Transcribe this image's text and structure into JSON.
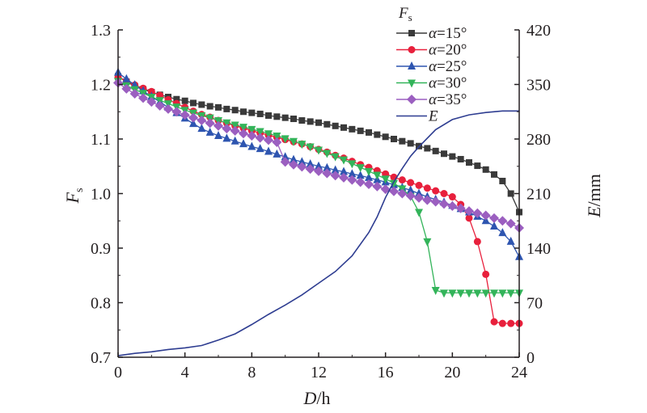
{
  "chart_data": {
    "type": "line",
    "x_axis": {
      "title": "D/h",
      "title_var": "D",
      "title_unit": "/h",
      "range": [
        0,
        24
      ],
      "ticks": [
        0,
        4,
        8,
        12,
        16,
        20,
        24
      ],
      "tick_labels": [
        "0",
        "4",
        "8",
        "12",
        "16",
        "20",
        "24"
      ]
    },
    "y_left": {
      "title": "Fs",
      "title_var": "F",
      "title_sub": "s",
      "range": [
        0.7,
        1.3
      ],
      "ticks": [
        0.7,
        0.8,
        0.9,
        1.0,
        1.1,
        1.2,
        1.3
      ],
      "tick_labels": [
        "0.7",
        "0.8",
        "0.9",
        "1.0",
        "1.1",
        "1.2",
        "1.3"
      ]
    },
    "y_right": {
      "title": "E/mm",
      "title_var": "E",
      "title_unit": "/mm",
      "range": [
        0,
        420
      ],
      "ticks": [
        0,
        70,
        140,
        210,
        280,
        350,
        420
      ],
      "tick_labels": [
        "0",
        "70",
        "140",
        "210",
        "280",
        "350",
        "420"
      ]
    },
    "legend": {
      "title": "Fs",
      "title_var": "F",
      "title_sub": "s",
      "position": "top-right"
    },
    "series": [
      {
        "name": "α=15°",
        "name_var": "α",
        "name_rest": "=15°",
        "axis": "left",
        "color": "#3a3a3a",
        "marker": "square",
        "x": [
          0,
          0.5,
          1,
          1.5,
          2,
          2.5,
          3,
          3.5,
          4,
          4.5,
          5,
          5.5,
          6,
          6.5,
          7,
          7.5,
          8,
          8.5,
          9,
          9.5,
          10,
          10.5,
          11,
          11.5,
          12,
          12.5,
          13,
          13.5,
          14,
          14.5,
          15,
          15.5,
          16,
          16.5,
          17,
          17.5,
          18,
          18.5,
          19,
          19.5,
          20,
          20.5,
          21,
          21.5,
          22,
          22.5,
          23,
          23.5,
          24
        ],
        "y": [
          1.215,
          1.205,
          1.197,
          1.191,
          1.186,
          1.181,
          1.177,
          1.173,
          1.17,
          1.166,
          1.163,
          1.16,
          1.158,
          1.155,
          1.153,
          1.15,
          1.148,
          1.146,
          1.143,
          1.141,
          1.139,
          1.137,
          1.134,
          1.132,
          1.13,
          1.127,
          1.124,
          1.121,
          1.118,
          1.115,
          1.112,
          1.108,
          1.104,
          1.1,
          1.096,
          1.092,
          1.087,
          1.083,
          1.078,
          1.073,
          1.068,
          1.063,
          1.057,
          1.051,
          1.044,
          1.035,
          1.023,
          1.0,
          0.966
        ]
      },
      {
        "name": "α=20°",
        "name_var": "α",
        "name_rest": "=20°",
        "axis": "left",
        "color": "#e8203c",
        "marker": "circle",
        "x": [
          0,
          0.5,
          1,
          1.5,
          2,
          2.5,
          3,
          3.5,
          4,
          4.5,
          5,
          5.5,
          6,
          6.5,
          7,
          7.5,
          8,
          8.5,
          9,
          9.5,
          10,
          10.5,
          11,
          11.5,
          12,
          12.5,
          13,
          13.5,
          14,
          14.5,
          15,
          15.5,
          16,
          16.5,
          17,
          17.5,
          18,
          18.5,
          19,
          19.5,
          20,
          20.5,
          21,
          21.5,
          22,
          22.5,
          23,
          23.5,
          24
        ],
        "y": [
          1.213,
          1.206,
          1.199,
          1.193,
          1.187,
          1.18,
          1.172,
          1.165,
          1.158,
          1.151,
          1.145,
          1.14,
          1.134,
          1.129,
          1.124,
          1.12,
          1.115,
          1.111,
          1.107,
          1.103,
          1.099,
          1.095,
          1.091,
          1.086,
          1.081,
          1.076,
          1.07,
          1.065,
          1.059,
          1.053,
          1.048,
          1.042,
          1.036,
          1.03,
          1.025,
          1.02,
          1.015,
          1.01,
          1.005,
          1.0,
          0.994,
          0.98,
          0.955,
          0.912,
          0.852,
          0.765,
          0.762,
          0.762,
          0.762
        ]
      },
      {
        "name": "α=25°",
        "name_var": "α",
        "name_rest": "=25°",
        "axis": "left",
        "color": "#2e55b0",
        "marker": "triangle-up",
        "x": [
          0,
          0.5,
          1,
          1.5,
          2,
          2.5,
          3,
          3.5,
          4,
          4.5,
          5,
          5.5,
          6,
          6.5,
          7,
          7.5,
          8,
          8.5,
          9,
          9.5,
          10,
          10.5,
          11,
          11.5,
          12,
          12.5,
          13,
          13.5,
          14,
          14.5,
          15,
          15.5,
          16,
          16.5,
          17,
          17.5,
          18,
          18.5,
          19,
          19.5,
          20,
          20.5,
          21,
          21.5,
          22,
          22.5,
          23,
          23.5,
          24
        ],
        "y": [
          1.222,
          1.21,
          1.199,
          1.188,
          1.178,
          1.168,
          1.158,
          1.148,
          1.138,
          1.128,
          1.119,
          1.112,
          1.106,
          1.101,
          1.096,
          1.091,
          1.086,
          1.082,
          1.077,
          1.072,
          1.067,
          1.062,
          1.058,
          1.054,
          1.05,
          1.047,
          1.043,
          1.04,
          1.036,
          1.033,
          1.029,
          1.025,
          1.021,
          1.016,
          1.011,
          1.006,
          1.0,
          0.994,
          0.989,
          0.984,
          0.978,
          0.972,
          0.966,
          0.958,
          0.95,
          0.94,
          0.928,
          0.912,
          0.884
        ]
      },
      {
        "name": "α=30°",
        "name_var": "α",
        "name_rest": "=30°",
        "axis": "left",
        "color": "#33b45a",
        "marker": "triangle-down",
        "x": [
          0,
          0.5,
          1,
          1.5,
          2,
          2.5,
          3,
          3.5,
          4,
          4.5,
          5,
          5.5,
          6,
          6.5,
          7,
          7.5,
          8,
          8.5,
          9,
          9.5,
          10,
          10.5,
          11,
          11.5,
          12,
          12.5,
          13,
          13.5,
          14,
          14.5,
          15,
          15.5,
          16,
          16.5,
          17,
          17.5,
          18,
          18.5,
          19,
          19.5,
          20,
          20.5,
          21,
          21.5,
          22,
          22.5,
          23,
          23.5,
          24
        ],
        "y": [
          1.206,
          1.198,
          1.191,
          1.184,
          1.177,
          1.171,
          1.165,
          1.159,
          1.153,
          1.148,
          1.143,
          1.139,
          1.134,
          1.13,
          1.126,
          1.122,
          1.118,
          1.114,
          1.11,
          1.106,
          1.101,
          1.096,
          1.091,
          1.086,
          1.08,
          1.074,
          1.068,
          1.062,
          1.055,
          1.048,
          1.041,
          1.034,
          1.027,
          1.019,
          1.009,
          0.995,
          0.966,
          0.912,
          0.823,
          0.818,
          0.818,
          0.818,
          0.818,
          0.818,
          0.818,
          0.818,
          0.818,
          0.818,
          0.818
        ]
      },
      {
        "name": "α=35°",
        "name_var": "α",
        "name_rest": "=35°",
        "axis": "left",
        "color": "#9b5fc0",
        "marker": "diamond",
        "x": [
          0,
          0.5,
          1,
          1.5,
          2,
          2.5,
          3,
          3.5,
          4,
          4.5,
          5,
          5.5,
          6,
          6.5,
          7,
          7.5,
          8,
          8.5,
          9,
          9.5,
          10,
          10.5,
          11,
          11.5,
          12,
          12.5,
          13,
          13.5,
          14,
          14.5,
          15,
          15.5,
          16,
          16.5,
          17,
          17.5,
          18,
          18.5,
          19,
          19.5,
          20,
          20.5,
          21,
          21.5,
          22,
          22.5,
          23,
          23.5,
          24
        ],
        "y": [
          1.203,
          1.192,
          1.183,
          1.175,
          1.168,
          1.161,
          1.155,
          1.15,
          1.144,
          1.139,
          1.134,
          1.129,
          1.124,
          1.119,
          1.115,
          1.11,
          1.106,
          1.102,
          1.098,
          1.094,
          1.058,
          1.053,
          1.049,
          1.045,
          1.041,
          1.037,
          1.033,
          1.029,
          1.025,
          1.021,
          1.017,
          1.013,
          1.008,
          1.004,
          1.0,
          0.996,
          0.992,
          0.988,
          0.985,
          0.981,
          0.977,
          0.973,
          0.968,
          0.964,
          0.96,
          0.955,
          0.95,
          0.945,
          0.937
        ]
      },
      {
        "name": "E",
        "name_var": "E",
        "name_rest": "",
        "axis": "right",
        "color": "#2e3d91",
        "marker": "none",
        "x": [
          0,
          1,
          2,
          3,
          4,
          5,
          6,
          7,
          8,
          9,
          10,
          11,
          12,
          13,
          14,
          15,
          15.5,
          16,
          16.5,
          17,
          17.5,
          18,
          19,
          20,
          21,
          22,
          23,
          24
        ],
        "y": [
          2,
          5,
          7,
          10,
          12,
          15,
          22,
          30,
          42,
          55,
          67,
          80,
          95,
          110,
          130,
          160,
          180,
          205,
          225,
          242,
          258,
          270,
          292,
          305,
          311,
          314,
          316,
          316
        ]
      }
    ]
  }
}
